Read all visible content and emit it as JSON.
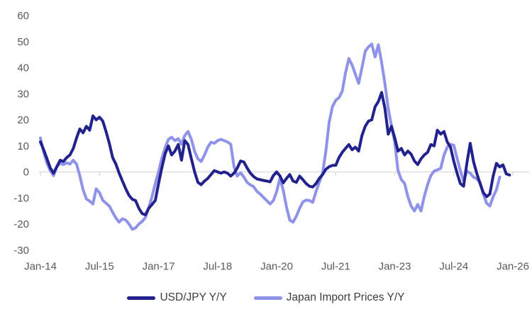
{
  "chart_data": {
    "type": "line",
    "title": "",
    "xlabel": "",
    "ylabel": "",
    "x_unit": "month",
    "x_start_label": "Jan-14",
    "x_end_label": "Jan-26",
    "x_tick_labels": [
      "Jan-14",
      "Jul-15",
      "Jan-17",
      "Jul-18",
      "Jan-20",
      "Jul-21",
      "Jan-23",
      "Jul-24",
      "Jan-26"
    ],
    "x_tick_month_indices": [
      0,
      18,
      36,
      54,
      72,
      90,
      108,
      126,
      144
    ],
    "y_ticks": [
      60,
      50,
      40,
      30,
      20,
      10,
      0,
      -10,
      -20,
      -30
    ],
    "ylim": [
      -30,
      60
    ],
    "grid": "zero-line-only",
    "legend_position": "bottom",
    "axis_text_color": "#595959",
    "gridline_color": "#D9D9D9",
    "legend_text_color": "#3d3d3d",
    "series": [
      {
        "name": "Japan Import Prices Y/Y",
        "color": "#8E92E8",
        "start_month": "Jan-14",
        "values": [
          13.0,
          7.5,
          3.3,
          0.5,
          -1.4,
          2.0,
          3.3,
          2.8,
          3.5,
          3.0,
          4.5,
          3.0,
          -1.5,
          -6.8,
          -10.4,
          -11.2,
          -12.3,
          -6.5,
          -8.0,
          -10.9,
          -12.0,
          -13.1,
          -15.5,
          -17.7,
          -19.3,
          -18.0,
          -18.5,
          -20.0,
          -22.0,
          -21.5,
          -20.0,
          -19.0,
          -17.5,
          -13.9,
          -9.5,
          -4.5,
          0.0,
          5.2,
          9.3,
          12.5,
          13.3,
          12.0,
          12.8,
          10.6,
          14.0,
          15.5,
          12.5,
          7.9,
          5.0,
          4.0,
          6.5,
          9.5,
          11.4,
          11.0,
          12.0,
          12.5,
          12.0,
          11.5,
          10.6,
          2.0,
          -1.6,
          -0.3,
          -2.0,
          -4.0,
          -5.0,
          -5.7,
          -7.5,
          -8.5,
          -9.8,
          -11.0,
          -12.3,
          -11.0,
          -7.6,
          -2.5,
          -7.0,
          -13.5,
          -18.5,
          -19.3,
          -17.0,
          -14.0,
          -11.5,
          -10.8,
          -11.0,
          -11.7,
          -7.6,
          -4.0,
          -0.5,
          8.0,
          19.0,
          25.0,
          27.5,
          28.5,
          31.0,
          38.0,
          43.5,
          41.0,
          37.5,
          34.0,
          40.0,
          46.3,
          48.0,
          49.1,
          44.1,
          48.8,
          42.0,
          34.0,
          24.3,
          17.7,
          11.4,
          0.5,
          -3.0,
          -4.4,
          -9.5,
          -13.1,
          -15.0,
          -12.5,
          -15.0,
          -9.5,
          -4.9,
          -1.4,
          0.3,
          0.8,
          1.4,
          6.4,
          9.5,
          10.6,
          10.2,
          5.2,
          0.5,
          -3.5,
          0.3,
          -0.5,
          -2.0,
          -2.7,
          -4.0,
          -8.5,
          -12.0,
          -13.1,
          -9.5,
          -6.8,
          -2.0
        ]
      },
      {
        "name": "USD/JPY Y/Y",
        "color": "#22228E",
        "start_month": "Jan-14",
        "values": [
          11.5,
          8.5,
          5.0,
          1.5,
          -0.5,
          2.0,
          4.5,
          4.0,
          5.5,
          6.5,
          9.0,
          13.0,
          16.5,
          15.0,
          17.5,
          16.0,
          21.5,
          20.0,
          21.0,
          19.5,
          15.5,
          11.0,
          5.5,
          3.0,
          -0.5,
          -3.5,
          -6.5,
          -9.0,
          -10.5,
          -11.0,
          -14.0,
          -16.0,
          -16.5,
          -14.0,
          -12.5,
          -11.0,
          -4.5,
          1.5,
          7.0,
          10.0,
          6.5,
          8.0,
          10.5,
          4.5,
          12.0,
          10.5,
          5.0,
          0.0,
          -4.0,
          -4.9,
          -3.5,
          -2.5,
          -1.0,
          0.5,
          0.0,
          -0.5,
          0.0,
          -0.5,
          -1.6,
          -0.5,
          1.5,
          4.2,
          3.8,
          1.5,
          -0.5,
          -1.8,
          -2.7,
          -3.0,
          -3.3,
          -3.5,
          -3.8,
          -1.4,
          0.0,
          -1.5,
          -4.2,
          -2.5,
          -1.0,
          -3.5,
          -4.0,
          -1.6,
          -3.0,
          -4.5,
          -5.5,
          -5.8,
          -4.5,
          -2.5,
          -1.0,
          1.0,
          2.0,
          2.5,
          2.5,
          5.5,
          7.5,
          9.0,
          10.5,
          8.5,
          9.5,
          8.0,
          14.0,
          17.5,
          19.5,
          20.0,
          25.0,
          27.0,
          30.5,
          24.5,
          14.5,
          17.5,
          13.0,
          8.0,
          9.0,
          6.5,
          8.0,
          6.8,
          4.2,
          2.8,
          5.0,
          6.5,
          7.5,
          10.5,
          10.0,
          16.0,
          14.5,
          15.5,
          11.5,
          9.5,
          4.0,
          -0.5,
          -4.5,
          -5.5,
          3.5,
          11.0,
          4.0,
          -0.5,
          -4.5,
          -8.0,
          -9.5,
          -8.5,
          -1.5,
          3.3,
          1.9,
          2.7,
          -0.8,
          -1.2
        ]
      }
    ]
  },
  "legend": {
    "items": [
      {
        "label": "USD/JPY Y/Y",
        "color": "#22228E"
      },
      {
        "label": "Japan Import Prices Y/Y",
        "color": "#8E92E8"
      }
    ]
  }
}
